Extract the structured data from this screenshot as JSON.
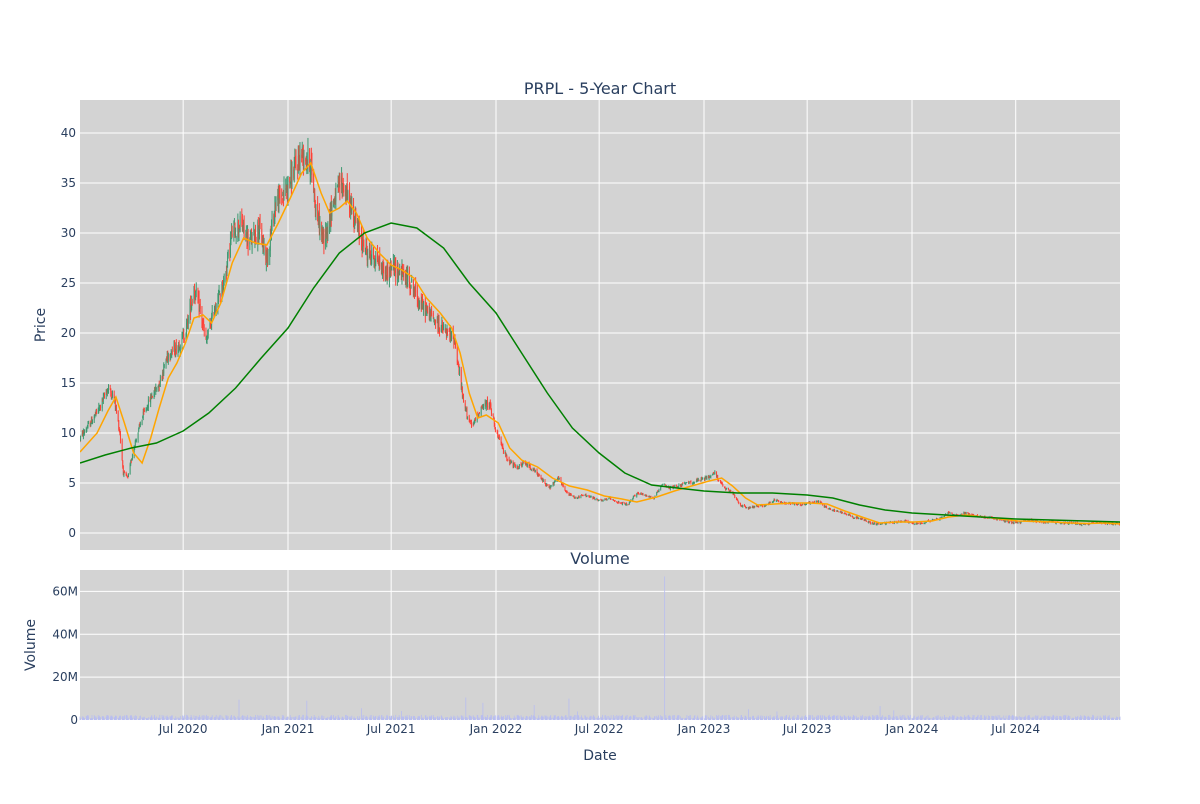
{
  "chart_data": [
    {
      "type": "candlestick",
      "title": "PRPL - 5-Year Chart",
      "ylabel": "Price",
      "xlabel": "",
      "ylim": [
        -1.7,
        43.3
      ],
      "xlim": [
        "2020-01-02",
        "2024-12-31"
      ],
      "yticks": [
        0,
        5,
        10,
        15,
        20,
        25,
        30,
        35,
        40
      ],
      "x_tick_dates": [
        "2020-07-01",
        "2021-01-01",
        "2021-07-01",
        "2022-01-01",
        "2022-07-01",
        "2023-01-01",
        "2023-07-01",
        "2024-01-01",
        "2024-07-01"
      ],
      "grid": true,
      "background": "#d3d3d3",
      "colors": {
        "increasing": "#3d9970",
        "decreasing": "#ff4136",
        "ma_short": "#ffa500",
        "ma_long": "#008000"
      },
      "price_path": [
        [
          "2020-01-02",
          9.5
        ],
        [
          "2020-01-20",
          11.0
        ],
        [
          "2020-02-05",
          12.5
        ],
        [
          "2020-02-20",
          14.5
        ],
        [
          "2020-03-02",
          13.5
        ],
        [
          "2020-03-12",
          10.0
        ],
        [
          "2020-03-18",
          6.0
        ],
        [
          "2020-03-26",
          5.5
        ],
        [
          "2020-04-05",
          8.5
        ],
        [
          "2020-04-20",
          11.5
        ],
        [
          "2020-05-05",
          13.5
        ],
        [
          "2020-05-20",
          15.0
        ],
        [
          "2020-06-05",
          18.0
        ],
        [
          "2020-06-20",
          18.5
        ],
        [
          "2020-07-05",
          20.0
        ],
        [
          "2020-07-20",
          24.5
        ],
        [
          "2020-08-01",
          22.0
        ],
        [
          "2020-08-10",
          19.0
        ],
        [
          "2020-08-25",
          22.5
        ],
        [
          "2020-09-10",
          25.0
        ],
        [
          "2020-09-25",
          30.0
        ],
        [
          "2020-10-10",
          31.0
        ],
        [
          "2020-10-25",
          29.0
        ],
        [
          "2020-11-10",
          30.5
        ],
        [
          "2020-11-25",
          27.5
        ],
        [
          "2020-12-10",
          33.0
        ],
        [
          "2020-12-25",
          34.0
        ],
        [
          "2021-01-10",
          36.0
        ],
        [
          "2021-01-25",
          38.0
        ],
        [
          "2021-02-10",
          37.0
        ],
        [
          "2021-02-20",
          32.0
        ],
        [
          "2021-03-05",
          29.0
        ],
        [
          "2021-03-20",
          33.0
        ],
        [
          "2021-04-05",
          35.0
        ],
        [
          "2021-04-20",
          33.0
        ],
        [
          "2021-05-05",
          30.0
        ],
        [
          "2021-05-20",
          28.0
        ],
        [
          "2021-06-05",
          27.5
        ],
        [
          "2021-06-20",
          26.0
        ],
        [
          "2021-07-05",
          26.5
        ],
        [
          "2021-07-20",
          26.0
        ],
        [
          "2021-08-05",
          25.0
        ],
        [
          "2021-08-20",
          23.0
        ],
        [
          "2021-09-05",
          22.0
        ],
        [
          "2021-09-20",
          21.0
        ],
        [
          "2021-10-05",
          20.0
        ],
        [
          "2021-10-20",
          19.5
        ],
        [
          "2021-11-05",
          13.0
        ],
        [
          "2021-11-20",
          10.5
        ],
        [
          "2021-12-05",
          12.5
        ],
        [
          "2021-12-20",
          13.0
        ],
        [
          "2022-01-05",
          9.5
        ],
        [
          "2022-01-20",
          7.5
        ],
        [
          "2022-02-05",
          6.5
        ],
        [
          "2022-02-20",
          7.0
        ],
        [
          "2022-03-05",
          6.5
        ],
        [
          "2022-03-20",
          5.5
        ],
        [
          "2022-04-05",
          4.5
        ],
        [
          "2022-04-20",
          5.5
        ],
        [
          "2022-05-05",
          4.0
        ],
        [
          "2022-05-20",
          3.5
        ],
        [
          "2022-06-05",
          3.8
        ],
        [
          "2022-06-20",
          3.5
        ],
        [
          "2022-07-05",
          3.2
        ],
        [
          "2022-07-20",
          3.5
        ],
        [
          "2022-08-05",
          3.0
        ],
        [
          "2022-08-20",
          2.8
        ],
        [
          "2022-09-05",
          4.0
        ],
        [
          "2022-09-20",
          3.8
        ],
        [
          "2022-10-05",
          3.5
        ],
        [
          "2022-10-20",
          4.8
        ],
        [
          "2022-11-05",
          4.5
        ],
        [
          "2022-11-20",
          4.8
        ],
        [
          "2022-12-05",
          5.0
        ],
        [
          "2022-12-20",
          5.2
        ],
        [
          "2023-01-05",
          5.5
        ],
        [
          "2023-01-20",
          6.0
        ],
        [
          "2023-02-05",
          4.5
        ],
        [
          "2023-02-20",
          4.0
        ],
        [
          "2023-03-05",
          2.8
        ],
        [
          "2023-03-20",
          2.5
        ],
        [
          "2023-04-05",
          2.7
        ],
        [
          "2023-04-20",
          2.8
        ],
        [
          "2023-05-05",
          3.3
        ],
        [
          "2023-05-20",
          3.0
        ],
        [
          "2023-06-05",
          3.0
        ],
        [
          "2023-06-20",
          2.8
        ],
        [
          "2023-07-05",
          3.0
        ],
        [
          "2023-07-20",
          3.2
        ],
        [
          "2023-08-05",
          2.5
        ],
        [
          "2023-08-20",
          2.2
        ],
        [
          "2023-09-05",
          2.0
        ],
        [
          "2023-09-20",
          1.6
        ],
        [
          "2023-10-05",
          1.4
        ],
        [
          "2023-10-20",
          1.0
        ],
        [
          "2023-11-05",
          0.9
        ],
        [
          "2023-11-20",
          1.0
        ],
        [
          "2023-12-05",
          1.1
        ],
        [
          "2023-12-20",
          1.2
        ],
        [
          "2024-01-05",
          0.9
        ],
        [
          "2024-01-20",
          1.0
        ],
        [
          "2024-02-05",
          1.3
        ],
        [
          "2024-02-20",
          1.5
        ],
        [
          "2024-03-05",
          2.0
        ],
        [
          "2024-03-20",
          1.8
        ],
        [
          "2024-04-05",
          2.0
        ],
        [
          "2024-04-20",
          1.7
        ],
        [
          "2024-05-05",
          1.6
        ],
        [
          "2024-05-20",
          1.5
        ],
        [
          "2024-06-05",
          1.3
        ],
        [
          "2024-06-20",
          1.1
        ],
        [
          "2024-07-05",
          1.0
        ],
        [
          "2024-07-20",
          1.3
        ],
        [
          "2024-08-05",
          1.2
        ],
        [
          "2024-08-20",
          1.1
        ],
        [
          "2024-09-05",
          1.1
        ],
        [
          "2024-09-20",
          1.0
        ],
        [
          "2024-10-05",
          1.0
        ],
        [
          "2024-10-20",
          0.9
        ],
        [
          "2024-11-05",
          0.9
        ],
        [
          "2024-11-20",
          1.1
        ],
        [
          "2024-12-05",
          1.0
        ],
        [
          "2024-12-31",
          0.9
        ]
      ],
      "ma_short": [
        [
          "2020-01-02",
          8.1
        ],
        [
          "2020-02-01",
          10.0
        ],
        [
          "2020-02-20",
          12.2
        ],
        [
          "2020-03-05",
          13.6
        ],
        [
          "2020-03-20",
          11.0
        ],
        [
          "2020-04-05",
          8.0
        ],
        [
          "2020-04-20",
          7.0
        ],
        [
          "2020-05-05",
          9.5
        ],
        [
          "2020-05-20",
          12.5
        ],
        [
          "2020-06-05",
          15.5
        ],
        [
          "2020-06-20",
          17.0
        ],
        [
          "2020-07-05",
          19.0
        ],
        [
          "2020-07-20",
          21.5
        ],
        [
          "2020-08-05",
          21.8
        ],
        [
          "2020-08-20",
          21.0
        ],
        [
          "2020-09-05",
          23.0
        ],
        [
          "2020-09-25",
          27.0
        ],
        [
          "2020-10-15",
          29.5
        ],
        [
          "2020-11-05",
          29.0
        ],
        [
          "2020-11-25",
          28.8
        ],
        [
          "2020-12-15",
          31.0
        ],
        [
          "2021-01-05",
          33.5
        ],
        [
          "2021-01-25",
          36.0
        ],
        [
          "2021-02-10",
          37.0
        ],
        [
          "2021-02-28",
          34.0
        ],
        [
          "2021-03-15",
          32.0
        ],
        [
          "2021-04-01",
          32.5
        ],
        [
          "2021-04-15",
          33.2
        ],
        [
          "2021-05-01",
          32.0
        ],
        [
          "2021-05-20",
          29.5
        ],
        [
          "2021-06-10",
          28.0
        ],
        [
          "2021-07-01",
          26.8
        ],
        [
          "2021-07-20",
          26.3
        ],
        [
          "2021-08-10",
          25.5
        ],
        [
          "2021-09-01",
          23.5
        ],
        [
          "2021-09-25",
          22.0
        ],
        [
          "2021-10-15",
          20.5
        ],
        [
          "2021-10-30",
          18.0
        ],
        [
          "2021-11-15",
          14.0
        ],
        [
          "2021-11-30",
          11.5
        ],
        [
          "2021-12-15",
          11.8
        ],
        [
          "2022-01-05",
          11.0
        ],
        [
          "2022-01-25",
          8.5
        ],
        [
          "2022-02-15",
          7.3
        ],
        [
          "2022-03-15",
          6.6
        ],
        [
          "2022-04-10",
          5.5
        ],
        [
          "2022-05-10",
          4.7
        ],
        [
          "2022-06-10",
          4.3
        ],
        [
          "2022-07-10",
          3.7
        ],
        [
          "2022-08-10",
          3.4
        ],
        [
          "2022-09-05",
          3.1
        ],
        [
          "2022-10-10",
          3.6
        ],
        [
          "2022-11-10",
          4.2
        ],
        [
          "2022-12-10",
          4.7
        ],
        [
          "2023-01-10",
          5.2
        ],
        [
          "2023-02-01",
          5.5
        ],
        [
          "2023-02-20",
          4.7
        ],
        [
          "2023-03-15",
          3.5
        ],
        [
          "2023-04-05",
          2.8
        ],
        [
          "2023-05-05",
          2.9
        ],
        [
          "2023-06-05",
          3.0
        ],
        [
          "2023-07-05",
          3.0
        ],
        [
          "2023-08-05",
          2.9
        ],
        [
          "2023-09-05",
          2.2
        ],
        [
          "2023-10-05",
          1.6
        ],
        [
          "2023-11-05",
          1.0
        ],
        [
          "2023-12-05",
          1.1
        ],
        [
          "2024-01-05",
          1.1
        ],
        [
          "2024-02-05",
          1.2
        ],
        [
          "2024-03-05",
          1.6
        ],
        [
          "2024-04-05",
          1.8
        ],
        [
          "2024-05-05",
          1.6
        ],
        [
          "2024-06-05",
          1.4
        ],
        [
          "2024-07-05",
          1.2
        ],
        [
          "2024-08-05",
          1.15
        ],
        [
          "2024-09-05",
          1.1
        ],
        [
          "2024-10-05",
          1.0
        ],
        [
          "2024-11-05",
          0.95
        ],
        [
          "2024-12-05",
          1.0
        ],
        [
          "2024-12-31",
          0.9
        ]
      ],
      "ma_long": [
        [
          "2020-01-02",
          7.0
        ],
        [
          "2020-02-15",
          7.8
        ],
        [
          "2020-04-01",
          8.5
        ],
        [
          "2020-05-15",
          9.0
        ],
        [
          "2020-07-01",
          10.2
        ],
        [
          "2020-08-15",
          12.0
        ],
        [
          "2020-10-01",
          14.5
        ],
        [
          "2020-11-15",
          17.5
        ],
        [
          "2021-01-01",
          20.5
        ],
        [
          "2021-02-15",
          24.5
        ],
        [
          "2021-04-01",
          28.0
        ],
        [
          "2021-05-15",
          30.0
        ],
        [
          "2021-07-01",
          31.0
        ],
        [
          "2021-08-15",
          30.5
        ],
        [
          "2021-10-01",
          28.5
        ],
        [
          "2021-11-15",
          25.0
        ],
        [
          "2022-01-01",
          22.0
        ],
        [
          "2022-02-15",
          18.0
        ],
        [
          "2022-04-01",
          14.0
        ],
        [
          "2022-05-15",
          10.5
        ],
        [
          "2022-07-01",
          8.0
        ],
        [
          "2022-08-15",
          6.0
        ],
        [
          "2022-10-01",
          4.8
        ],
        [
          "2022-11-15",
          4.5
        ],
        [
          "2023-01-01",
          4.2
        ],
        [
          "2023-03-01",
          4.0
        ],
        [
          "2023-05-01",
          4.0
        ],
        [
          "2023-07-01",
          3.8
        ],
        [
          "2023-08-15",
          3.5
        ],
        [
          "2023-10-01",
          2.8
        ],
        [
          "2023-11-15",
          2.3
        ],
        [
          "2024-01-01",
          2.0
        ],
        [
          "2024-03-01",
          1.8
        ],
        [
          "2024-05-01",
          1.6
        ],
        [
          "2024-07-01",
          1.4
        ],
        [
          "2024-09-01",
          1.3
        ],
        [
          "2024-11-01",
          1.2
        ],
        [
          "2024-12-31",
          1.1
        ]
      ]
    },
    {
      "type": "bar",
      "title": "Volume",
      "xlabel": "Date",
      "ylabel": "Volume",
      "ylim": [
        0,
        70000000
      ],
      "yticks": [
        0,
        20000000,
        40000000,
        60000000
      ],
      "ytick_labels": [
        "0",
        "20M",
        "40M",
        "60M"
      ],
      "x_tick_labels": [
        "Jul 2020",
        "Jan 2021",
        "Jul 2021",
        "Jan 2022",
        "Jul 2022",
        "Jan 2023",
        "Jul 2023",
        "Jan 2024",
        "Jul 2024"
      ],
      "grid": true,
      "background": "#d3d3d3",
      "bar_color": "#b8bdf0",
      "baseline_volume": 1500000,
      "volume_spikes": [
        [
          "2020-10-08",
          9500000
        ],
        [
          "2021-02-04",
          9000000
        ],
        [
          "2021-05-10",
          5500000
        ],
        [
          "2021-07-20",
          4200000
        ],
        [
          "2021-11-10",
          10500000
        ],
        [
          "2021-12-10",
          8000000
        ],
        [
          "2022-03-10",
          7000000
        ],
        [
          "2022-05-10",
          10000000
        ],
        [
          "2022-05-25",
          4000000
        ],
        [
          "2022-10-25",
          67000000
        ],
        [
          "2023-03-20",
          5000000
        ],
        [
          "2023-05-10",
          4000000
        ],
        [
          "2023-11-05",
          6500000
        ],
        [
          "2023-12-01",
          4500000
        ]
      ]
    }
  ]
}
